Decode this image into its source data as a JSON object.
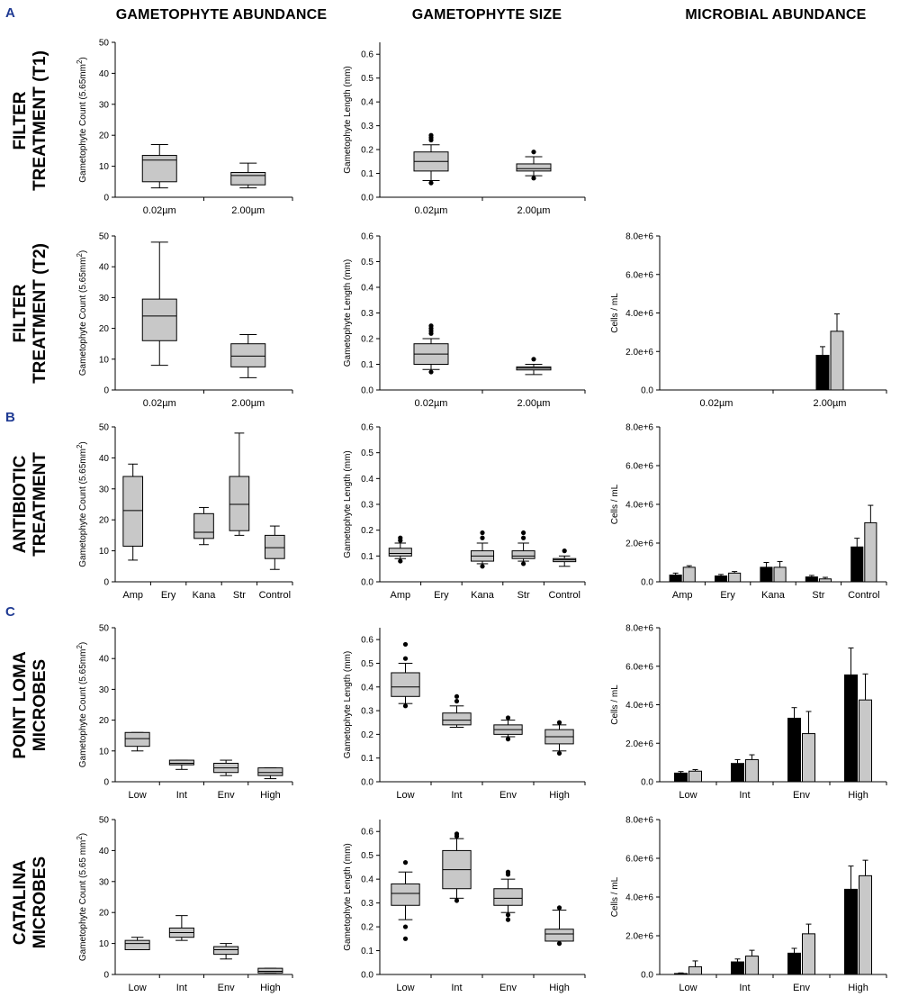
{
  "column_titles": [
    "GAMETOPHYTE ABUNDANCE",
    "GAMETOPHYTE SIZE",
    "MICROBIAL ABUNDANCE"
  ],
  "panel_letters": [
    "A",
    "B",
    "C"
  ],
  "row_titles": [
    [
      "FILTER",
      "TREATMENT (T1)"
    ],
    [
      "FILTER",
      "TREATMENT (T2)"
    ],
    [
      "ANTIBIOTIC",
      "TREATMENT"
    ],
    [
      "POINT LOMA",
      "MICROBES"
    ],
    [
      "CATALINA",
      "MICROBES"
    ]
  ],
  "colors": {
    "box_fill": "#c8c8c8",
    "bar_black": "#000000",
    "bar_grey": "#c8c8c8",
    "panel_letter": "#1f3a93"
  },
  "chart_data": [
    {
      "id": "abund_t1",
      "row": 0,
      "col": 0,
      "type": "box",
      "ylabel": "Gametophyte Count (5.65mm",
      "ylabel_sup": "2",
      "ylabel_tail": ")",
      "ylim": [
        0,
        50
      ],
      "yticks": [
        0,
        10,
        20,
        30,
        40,
        50
      ],
      "ytick_labels": [
        "0",
        "10",
        "20",
        "30",
        "40",
        "50"
      ],
      "categories": [
        "0.02µm",
        "2.00µm"
      ],
      "boxes": [
        {
          "whislo": 3,
          "q1": 5,
          "med": 12,
          "q3": 13.5,
          "whishi": 17,
          "fliers": []
        },
        {
          "whislo": 3,
          "q1": 4,
          "med": 7,
          "q3": 8,
          "whishi": 11,
          "fliers": []
        }
      ]
    },
    {
      "id": "size_t1",
      "row": 0,
      "col": 1,
      "type": "box",
      "ylabel": "Gametophyte Length (mm)",
      "ylabel_sup": "",
      "ylabel_tail": "",
      "ylim": [
        0,
        0.65
      ],
      "yticks": [
        0,
        0.1,
        0.2,
        0.3,
        0.4,
        0.5,
        0.6
      ],
      "ytick_labels": [
        "0.0",
        "0.1",
        "0.2",
        "0.3",
        "0.4",
        "0.5",
        "0.6"
      ],
      "categories": [
        "0.02µm",
        "2.00µm"
      ],
      "boxes": [
        {
          "whislo": 0.07,
          "q1": 0.11,
          "med": 0.15,
          "q3": 0.19,
          "whishi": 0.22,
          "fliers": [
            0.06,
            0.24,
            0.25,
            0.26
          ]
        },
        {
          "whislo": 0.09,
          "q1": 0.11,
          "med": 0.12,
          "q3": 0.14,
          "whishi": 0.17,
          "fliers": [
            0.08,
            0.19
          ]
        }
      ]
    },
    {
      "id": "abund_t2",
      "row": 1,
      "col": 0,
      "type": "box",
      "ylabel": "Gametophyte Count (5.65mm",
      "ylabel_sup": "2",
      "ylabel_tail": ")",
      "ylim": [
        0,
        50
      ],
      "yticks": [
        0,
        10,
        20,
        30,
        40,
        50
      ],
      "ytick_labels": [
        "0",
        "10",
        "20",
        "30",
        "40",
        "50"
      ],
      "categories": [
        "0.02µm",
        "2.00µm"
      ],
      "boxes": [
        {
          "whislo": 8,
          "q1": 16,
          "med": 24,
          "q3": 29.5,
          "whishi": 48,
          "fliers": []
        },
        {
          "whislo": 4,
          "q1": 7.5,
          "med": 11,
          "q3": 15,
          "whishi": 18,
          "fliers": []
        }
      ]
    },
    {
      "id": "size_t2",
      "row": 1,
      "col": 1,
      "type": "box",
      "ylabel": "Gametophyte Length (mm)",
      "ylabel_sup": "",
      "ylabel_tail": "",
      "ylim": [
        0,
        0.6
      ],
      "yticks": [
        0,
        0.1,
        0.2,
        0.3,
        0.4,
        0.5,
        0.6
      ],
      "ytick_labels": [
        "0.0",
        "0.1",
        "0.2",
        "0.3",
        "0.4",
        "0.5",
        "0.6"
      ],
      "categories": [
        "0.02µm",
        "2.00µm"
      ],
      "boxes": [
        {
          "whislo": 0.08,
          "q1": 0.1,
          "med": 0.14,
          "q3": 0.18,
          "whishi": 0.2,
          "fliers": [
            0.07,
            0.22,
            0.23,
            0.24,
            0.25
          ]
        },
        {
          "whislo": 0.06,
          "q1": 0.078,
          "med": 0.085,
          "q3": 0.09,
          "whishi": 0.1,
          "fliers": [
            0.12
          ]
        }
      ]
    },
    {
      "id": "micro_t2",
      "row": 1,
      "col": 2,
      "type": "bar",
      "ylabel": "Cells / mL",
      "ylim": [
        0,
        8000000
      ],
      "yticks": [
        0,
        2000000,
        4000000,
        6000000,
        8000000
      ],
      "ytick_labels": [
        "0.0",
        "2.0e+6",
        "4.0e+6",
        "6.0e+6",
        "8.0e+6"
      ],
      "categories": [
        "0.02µm",
        "2.00µm"
      ],
      "series": [
        {
          "name": "black",
          "color": "#000000",
          "values": [
            0,
            1800000
          ],
          "errors": [
            0,
            450000
          ]
        },
        {
          "name": "grey",
          "color": "#c8c8c8",
          "values": [
            0,
            3050000
          ],
          "errors": [
            0,
            900000
          ]
        }
      ]
    },
    {
      "id": "abund_ab",
      "row": 2,
      "col": 0,
      "type": "box",
      "ylabel": "Gametophyte Count (5.65mm",
      "ylabel_sup": "2",
      "ylabel_tail": ")",
      "ylim": [
        0,
        50
      ],
      "yticks": [
        0,
        10,
        20,
        30,
        40,
        50
      ],
      "ytick_labels": [
        "0",
        "10",
        "20",
        "30",
        "40",
        "50"
      ],
      "categories": [
        "Amp",
        "Ery",
        "Kana",
        "Str",
        "Control"
      ],
      "boxes": [
        {
          "whislo": 7,
          "q1": 11.5,
          "med": 23,
          "q3": 34,
          "whishi": 38,
          "fliers": []
        },
        null,
        {
          "whislo": 12,
          "q1": 14,
          "med": 16,
          "q3": 22,
          "whishi": 24,
          "fliers": []
        },
        {
          "whislo": 15,
          "q1": 16.5,
          "med": 25,
          "q3": 34,
          "whishi": 48,
          "fliers": []
        },
        {
          "whislo": 4,
          "q1": 7.5,
          "med": 11,
          "q3": 15,
          "whishi": 18,
          "fliers": []
        }
      ]
    },
    {
      "id": "size_ab",
      "row": 2,
      "col": 1,
      "type": "box",
      "ylabel": "Gametophyte Length (mm)",
      "ylabel_sup": "",
      "ylabel_tail": "",
      "ylim": [
        0,
        0.6
      ],
      "yticks": [
        0,
        0.1,
        0.2,
        0.3,
        0.4,
        0.5,
        0.6
      ],
      "ytick_labels": [
        "0.0",
        "0.1",
        "0.2",
        "0.3",
        "0.4",
        "0.5",
        "0.6"
      ],
      "categories": [
        "Amp",
        "Ery",
        "Kana",
        "Str",
        "Control"
      ],
      "boxes": [
        {
          "whislo": 0.09,
          "q1": 0.1,
          "med": 0.11,
          "q3": 0.13,
          "whishi": 0.15,
          "fliers": [
            0.08,
            0.16,
            0.17
          ]
        },
        null,
        {
          "whislo": 0.07,
          "q1": 0.08,
          "med": 0.1,
          "q3": 0.12,
          "whishi": 0.15,
          "fliers": [
            0.06,
            0.17,
            0.19
          ]
        },
        {
          "whislo": 0.08,
          "q1": 0.09,
          "med": 0.1,
          "q3": 0.12,
          "whishi": 0.15,
          "fliers": [
            0.07,
            0.17,
            0.19
          ]
        },
        {
          "whislo": 0.06,
          "q1": 0.078,
          "med": 0.085,
          "q3": 0.09,
          "whishi": 0.1,
          "fliers": [
            0.12
          ]
        }
      ]
    },
    {
      "id": "micro_ab",
      "row": 2,
      "col": 2,
      "type": "bar",
      "ylabel": "Cells / mL",
      "ylim": [
        0,
        8000000
      ],
      "yticks": [
        0,
        2000000,
        4000000,
        6000000,
        8000000
      ],
      "ytick_labels": [
        "0.0",
        "2.0e+6",
        "4.0e+6",
        "6.0e+6",
        "8.0e+6"
      ],
      "categories": [
        "Amp",
        "Ery",
        "Kana",
        "Str",
        "Control"
      ],
      "series": [
        {
          "name": "black",
          "color": "#000000",
          "values": [
            350000,
            300000,
            750000,
            250000,
            1800000
          ],
          "errors": [
            100000,
            80000,
            250000,
            80000,
            450000
          ]
        },
        {
          "name": "grey",
          "color": "#c8c8c8",
          "values": [
            750000,
            450000,
            750000,
            150000,
            3050000
          ],
          "errors": [
            80000,
            80000,
            300000,
            80000,
            900000
          ]
        }
      ]
    },
    {
      "id": "abund_pl",
      "row": 3,
      "col": 0,
      "type": "box",
      "ylabel": "Gametophyte Count (5.65mm",
      "ylabel_sup": "2",
      "ylabel_tail": ")",
      "ylim": [
        0,
        50
      ],
      "yticks": [
        0,
        10,
        20,
        30,
        40,
        50
      ],
      "ytick_labels": [
        "0",
        "10",
        "20",
        "30",
        "40",
        "50"
      ],
      "categories": [
        "Low",
        "Int",
        "Env",
        "High"
      ],
      "boxes": [
        {
          "whislo": 10,
          "q1": 11.5,
          "med": 14,
          "q3": 16,
          "whishi": 16,
          "fliers": []
        },
        {
          "whislo": 4,
          "q1": 5.5,
          "med": 6,
          "q3": 7,
          "whishi": 7,
          "fliers": []
        },
        {
          "whislo": 2,
          "q1": 3,
          "med": 4.5,
          "q3": 6,
          "whishi": 7,
          "fliers": []
        },
        {
          "whislo": 1,
          "q1": 2,
          "med": 3,
          "q3": 4.5,
          "whishi": 4.5,
          "fliers": []
        }
      ]
    },
    {
      "id": "size_pl",
      "row": 3,
      "col": 1,
      "type": "box",
      "ylabel": "Gametophyte Length (mm)",
      "ylabel_sup": "",
      "ylabel_tail": "",
      "ylim": [
        0,
        0.65
      ],
      "yticks": [
        0,
        0.1,
        0.2,
        0.3,
        0.4,
        0.5,
        0.6
      ],
      "ytick_labels": [
        "0.0",
        "0.1",
        "0.2",
        "0.3",
        "0.4",
        "0.5",
        "0.6"
      ],
      "categories": [
        "Low",
        "Int",
        "Env",
        "High"
      ],
      "boxes": [
        {
          "whislo": 0.33,
          "q1": 0.36,
          "med": 0.4,
          "q3": 0.46,
          "whishi": 0.5,
          "fliers": [
            0.32,
            0.52,
            0.58
          ]
        },
        {
          "whislo": 0.23,
          "q1": 0.24,
          "med": 0.26,
          "q3": 0.29,
          "whishi": 0.32,
          "fliers": [
            0.34,
            0.36
          ]
        },
        {
          "whislo": 0.19,
          "q1": 0.2,
          "med": 0.22,
          "q3": 0.24,
          "whishi": 0.26,
          "fliers": [
            0.18,
            0.27
          ]
        },
        {
          "whislo": 0.13,
          "q1": 0.16,
          "med": 0.19,
          "q3": 0.22,
          "whishi": 0.24,
          "fliers": [
            0.12,
            0.25
          ]
        }
      ]
    },
    {
      "id": "micro_pl",
      "row": 3,
      "col": 2,
      "type": "bar",
      "ylabel": "Cells / mL",
      "ylim": [
        0,
        8000000
      ],
      "yticks": [
        0,
        2000000,
        4000000,
        6000000,
        8000000
      ],
      "ytick_labels": [
        "0.0",
        "2.0e+6",
        "4.0e+6",
        "6.0e+6",
        "8.0e+6"
      ],
      "categories": [
        "Low",
        "Int",
        "Env",
        "High"
      ],
      "series": [
        {
          "name": "black",
          "color": "#000000",
          "values": [
            450000,
            950000,
            3300000,
            5550000
          ],
          "errors": [
            80000,
            200000,
            550000,
            1400000
          ]
        },
        {
          "name": "grey",
          "color": "#c8c8c8",
          "values": [
            550000,
            1150000,
            2500000,
            4250000
          ],
          "errors": [
            80000,
            250000,
            1150000,
            1350000
          ]
        }
      ]
    },
    {
      "id": "abund_cat",
      "row": 4,
      "col": 0,
      "type": "box",
      "ylabel": "Gametophyte Count (5.65 mm",
      "ylabel_sup": "2",
      "ylabel_tail": ")",
      "ylim": [
        0,
        50
      ],
      "yticks": [
        0,
        10,
        20,
        30,
        40,
        50
      ],
      "ytick_labels": [
        "0",
        "10",
        "20",
        "30",
        "40",
        "50"
      ],
      "categories": [
        "Low",
        "Int",
        "Env",
        "High"
      ],
      "boxes": [
        {
          "whislo": 8,
          "q1": 8,
          "med": 10,
          "q3": 11,
          "whishi": 12,
          "fliers": []
        },
        {
          "whislo": 11,
          "q1": 12,
          "med": 13.5,
          "q3": 15,
          "whishi": 19,
          "fliers": []
        },
        {
          "whislo": 5,
          "q1": 6.5,
          "med": 8,
          "q3": 9,
          "whishi": 10,
          "fliers": []
        },
        {
          "whislo": 0.5,
          "q1": 0.5,
          "med": 1,
          "q3": 2,
          "whishi": 2,
          "fliers": []
        }
      ]
    },
    {
      "id": "size_cat",
      "row": 4,
      "col": 1,
      "type": "box",
      "ylabel": "Gametophyte Length (mm)",
      "ylabel_sup": "",
      "ylabel_tail": "",
      "ylim": [
        0,
        0.65
      ],
      "yticks": [
        0,
        0.1,
        0.2,
        0.3,
        0.4,
        0.5,
        0.6
      ],
      "ytick_labels": [
        "0.0",
        "0.1",
        "0.2",
        "0.3",
        "0.4",
        "0.5",
        "0.6"
      ],
      "categories": [
        "Low",
        "Int",
        "Env",
        "High"
      ],
      "boxes": [
        {
          "whislo": 0.23,
          "q1": 0.29,
          "med": 0.34,
          "q3": 0.38,
          "whishi": 0.43,
          "fliers": [
            0.15,
            0.2,
            0.47
          ]
        },
        {
          "whislo": 0.32,
          "q1": 0.36,
          "med": 0.44,
          "q3": 0.52,
          "whishi": 0.57,
          "fliers": [
            0.31,
            0.58,
            0.59
          ]
        },
        {
          "whislo": 0.26,
          "q1": 0.29,
          "med": 0.32,
          "q3": 0.36,
          "whishi": 0.4,
          "fliers": [
            0.23,
            0.25,
            0.42,
            0.43
          ]
        },
        {
          "whislo": 0.14,
          "q1": 0.14,
          "med": 0.17,
          "q3": 0.19,
          "whishi": 0.27,
          "fliers": [
            0.13,
            0.28
          ]
        }
      ]
    },
    {
      "id": "micro_cat",
      "row": 4,
      "col": 2,
      "type": "bar",
      "ylabel": "Cells / mL",
      "ylim": [
        0,
        8000000
      ],
      "yticks": [
        0,
        2000000,
        4000000,
        6000000,
        8000000
      ],
      "ytick_labels": [
        "0.0",
        "2.0e+6",
        "4.0e+6",
        "6.0e+6",
        "8.0e+6"
      ],
      "categories": [
        "Low",
        "Int",
        "Env",
        "High"
      ],
      "series": [
        {
          "name": "black",
          "color": "#000000",
          "values": [
            50000,
            650000,
            1100000,
            4400000
          ],
          "errors": [
            30000,
            150000,
            250000,
            1200000
          ]
        },
        {
          "name": "grey",
          "color": "#c8c8c8",
          "values": [
            400000,
            950000,
            2100000,
            5100000
          ],
          "errors": [
            300000,
            300000,
            500000,
            800000
          ]
        }
      ]
    }
  ]
}
